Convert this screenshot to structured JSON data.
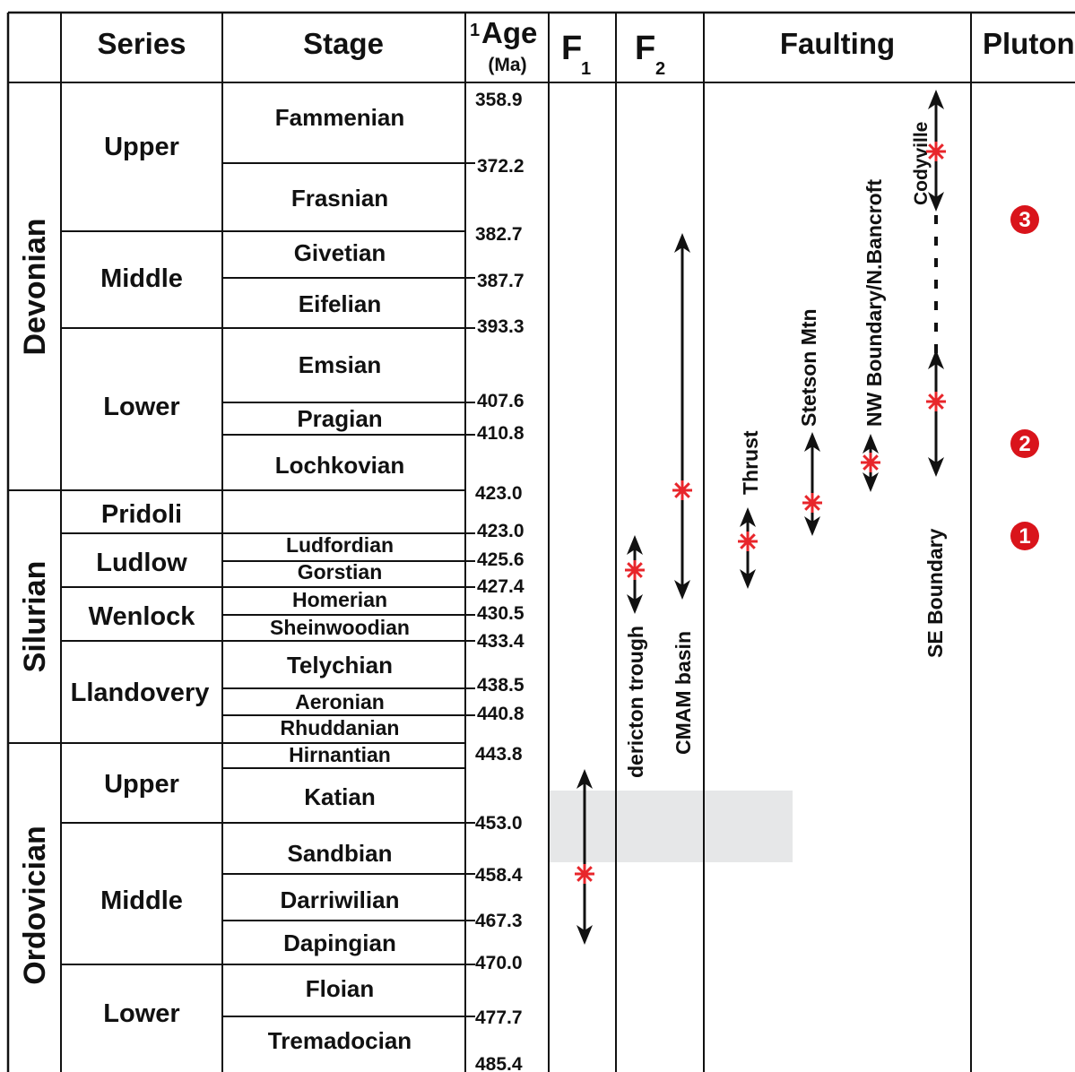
{
  "header": {
    "series": "Series",
    "stage": "Stage",
    "age_sup": "1",
    "age": "Age",
    "age_unit": "(Ma)",
    "f1_main": "F",
    "f1_sub": "1",
    "f2_main": "F",
    "f2_sub": "2",
    "faulting": "Faulting",
    "pluton": "Pluton"
  },
  "periods": [
    "Devonian",
    "Silurian",
    "Ordovician"
  ],
  "series": [
    "Upper",
    "Middle",
    "Lower",
    "Pridoli",
    "Ludlow",
    "Wenlock",
    "Llandovery",
    "Upper",
    "Middle",
    "Lower"
  ],
  "stages": [
    "Fammenian",
    "Frasnian",
    "Givetian",
    "Eifelian",
    "Emsian",
    "Pragian",
    "Lochkovian",
    "Ludfordian",
    "Gorstian",
    "Homerian",
    "Sheinwoodian",
    "Telychian",
    "Aeronian",
    "Rhuddanian",
    "Hirnantian",
    "Katian",
    "Sandbian",
    "Darriwilian",
    "Dapingian",
    "Floian",
    "Tremadocian"
  ],
  "ages": [
    "358.9",
    "372.2",
    "382.7",
    "387.7",
    "393.3",
    "407.6",
    "410.8",
    "423.0",
    "423.0",
    "425.6",
    "427.4",
    "430.5",
    "433.4",
    "438.5",
    "440.8",
    "443.8",
    "453.0",
    "458.4",
    "467.3",
    "470.0",
    "477.7",
    "485.4"
  ],
  "ranges": {
    "f2": [
      {
        "label": "Fredericton trough",
        "shown_text": "dericton trough",
        "from_ma": 425.6,
        "to_ma": 430.5
      },
      {
        "label": "CMAM basin",
        "from_ma": 382.7,
        "to_ma": 430.5
      }
    ],
    "faulting": [
      {
        "label": "Thrust",
        "from_ma": 420,
        "to_ma": 428
      },
      {
        "label": "Stetson Mtn",
        "from_ma": 410,
        "to_ma": 420
      },
      {
        "label": "NW Boundary/N.Bancroft",
        "from_ma": 410.5,
        "to_ma": 415
      },
      {
        "label": "Codyville",
        "from_ma": 358.9,
        "to_ma": 378
      },
      {
        "label": "SE Boundary",
        "from_ma": 395,
        "to_ma": 415
      }
    ],
    "f1": [
      {
        "from_ma": 446,
        "to_ma": 467
      }
    ]
  },
  "plutons": [
    "3",
    "2",
    "1"
  ],
  "colors": {
    "line": "#111111",
    "marker": "#e8262b",
    "pluton": "#d9141b",
    "shade": "#e6e7e8"
  }
}
